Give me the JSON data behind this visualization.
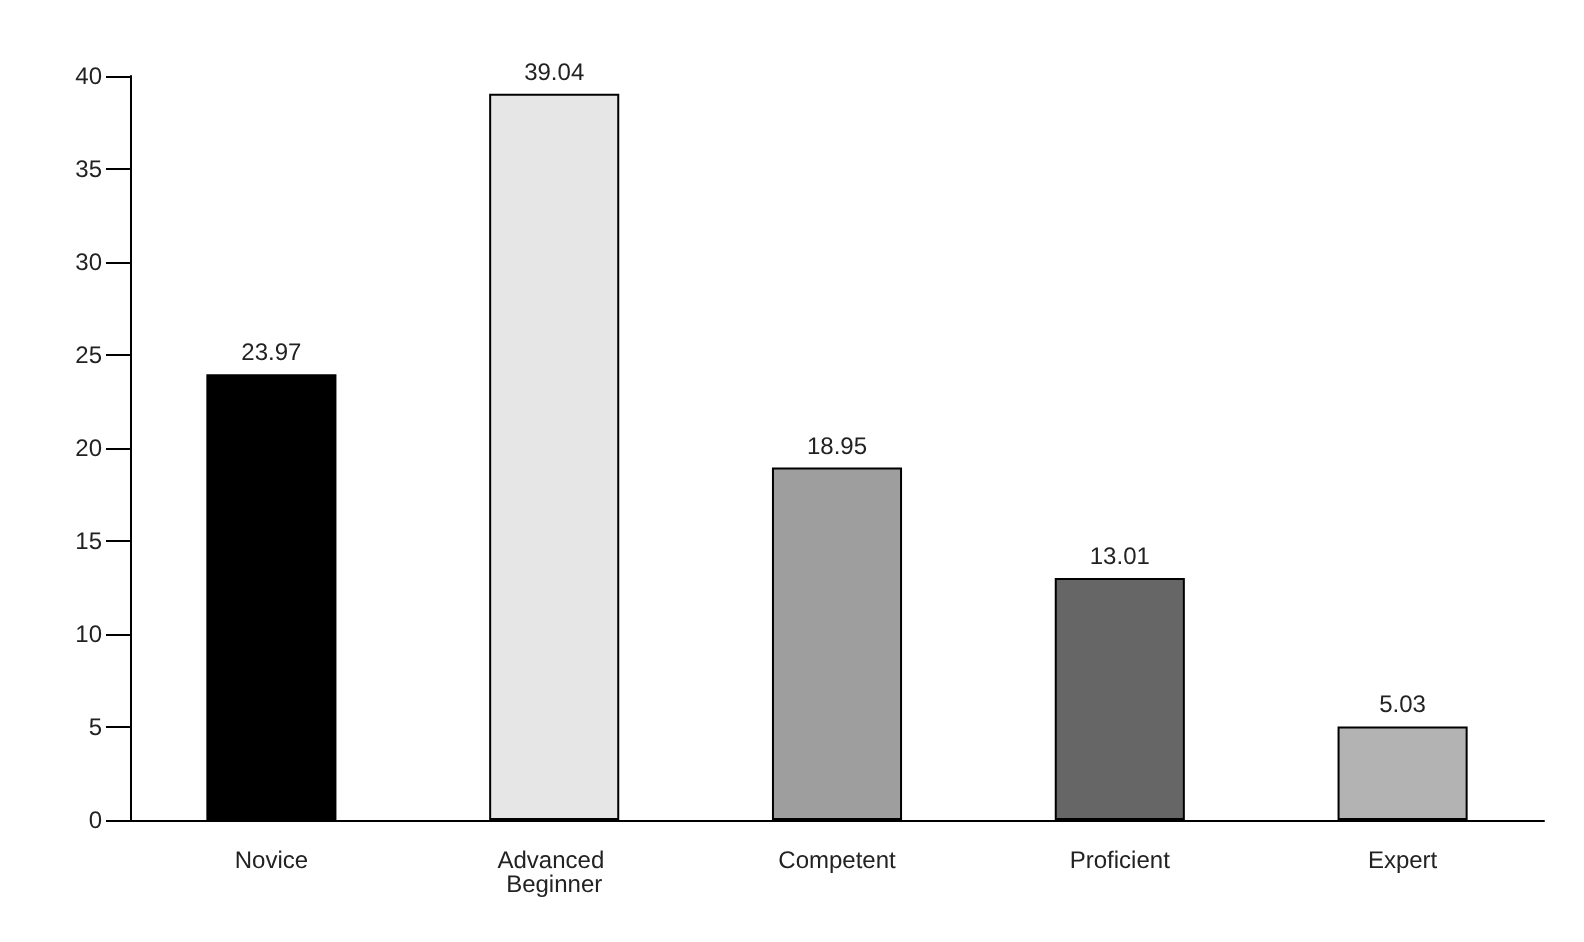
{
  "chart_data": {
    "type": "bar",
    "categories": [
      "Novice",
      "Advanced Beginner",
      "Competent",
      "Proficient",
      "Expert"
    ],
    "values": [
      23.97,
      39.04,
      18.95,
      13.01,
      5.03
    ],
    "colors": [
      "#000000",
      "#e6e6e6",
      "#9e9e9e",
      "#666666",
      "#b3b3b3"
    ],
    "ylim": [
      0,
      40
    ],
    "yticks": [
      0,
      5,
      10,
      15,
      20,
      25,
      30,
      35,
      40
    ],
    "data_labels": true,
    "grid": false
  }
}
